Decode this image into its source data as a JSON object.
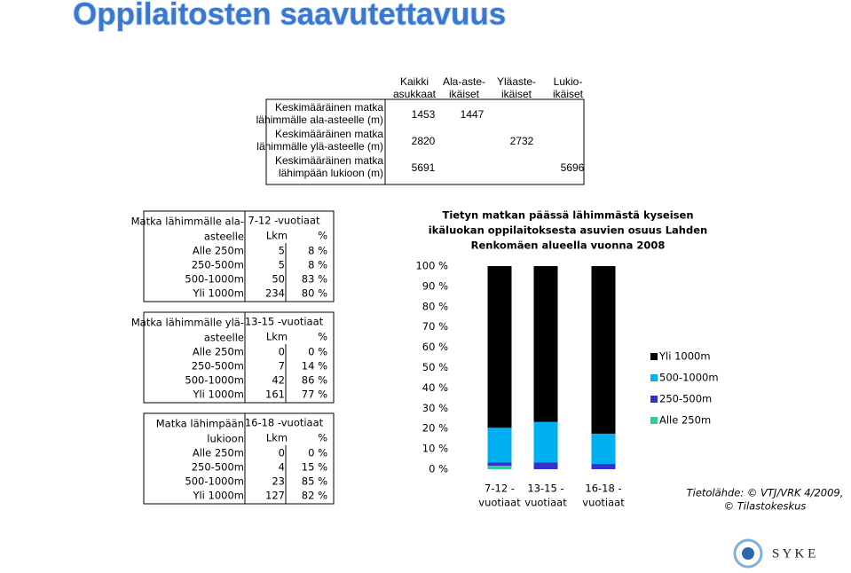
{
  "title": "Oppilaitosten saavutettavuus",
  "top_table": {
    "headers": [
      [
        "Kaikki",
        "asukkaat"
      ],
      [
        "Ala-aste-",
        "ikäiset"
      ],
      [
        "Yläaste-",
        "ikäiset"
      ],
      [
        "Lukio-",
        "ikäiset"
      ]
    ],
    "rows": [
      {
        "label": [
          "Keskimääräinen matka",
          "lähimmälle ala-asteelle (m)"
        ],
        "values": [
          1453,
          1447,
          null,
          null
        ]
      },
      {
        "label": [
          "Keskimääräinen matka",
          "lähimmälle ylä-asteelle (m)"
        ],
        "values": [
          2820,
          null,
          2732,
          null
        ]
      },
      {
        "label": [
          "Keskimääräinen matka",
          "lähimpään lukioon (m)"
        ],
        "values": [
          5691,
          null,
          null,
          5696
        ]
      }
    ]
  },
  "tables": [
    {
      "title": [
        "Matka lähimmälle ala-",
        "asteelle"
      ],
      "group": "7-12 -vuotiaat",
      "columns": [
        "Lkm",
        "%"
      ],
      "rows": [
        {
          "label": "Alle 250m",
          "count": 5,
          "pct": "8 %"
        },
        {
          "label": "250-500m",
          "count": 5,
          "pct": "8 %"
        },
        {
          "label": "500-1000m",
          "count": 50,
          "pct": "83 %"
        },
        {
          "label": "Yli 1000m",
          "count": 234,
          "pct": "80 %"
        }
      ]
    },
    {
      "title": [
        "Matka lähimmälle ylä-",
        "asteelle"
      ],
      "group": "13-15 -vuotiaat",
      "columns": [
        "Lkm",
        "%"
      ],
      "rows": [
        {
          "label": "Alle 250m",
          "count": 0,
          "pct": "0 %"
        },
        {
          "label": "250-500m",
          "count": 7,
          "pct": "14 %"
        },
        {
          "label": "500-1000m",
          "count": 42,
          "pct": "86 %"
        },
        {
          "label": "Yli 1000m",
          "count": 161,
          "pct": "77 %"
        }
      ]
    },
    {
      "title": [
        "Matka lähimpään",
        "lukioon"
      ],
      "group": "16-18 -vuotiaat",
      "columns": [
        "Lkm",
        "%"
      ],
      "rows": [
        {
          "label": "Alle 250m",
          "count": 0,
          "pct": "0 %"
        },
        {
          "label": "250-500m",
          "count": 4,
          "pct": "15 %"
        },
        {
          "label": "500-1000m",
          "count": 23,
          "pct": "85 %"
        },
        {
          "label": "Yli 1000m",
          "count": 127,
          "pct": "82 %"
        }
      ]
    }
  ],
  "chart_data": {
    "type": "stacked_bar",
    "title": [
      "Tietyn matkan päässä lähimmästä kyseisen",
      "ikäluokan oppilaitoksesta asuvien osuus Lahden",
      "Renkomäen alueella vuonna 2008"
    ],
    "categories": [
      [
        "7-12 -",
        "vuotiaat"
      ],
      [
        "13-15 -",
        "vuotiaat"
      ],
      [
        "16-18 -",
        "vuotiaat"
      ]
    ],
    "series": [
      {
        "name": "Yli 1000m",
        "color": "#000000",
        "values": [
          79.6,
          76.7,
          82.5
        ]
      },
      {
        "name": "500-1000m",
        "color": "#00b0f0",
        "values": [
          17.0,
          20.0,
          14.9
        ]
      },
      {
        "name": "250-500m",
        "color": "#3333cc",
        "values": [
          1.7,
          3.3,
          2.6
        ]
      },
      {
        "name": "Alle 250m",
        "color": "#33cc99",
        "values": [
          1.7,
          0,
          0
        ]
      }
    ],
    "ylim": [
      0,
      100
    ],
    "yticks": [
      {
        "value": 0,
        "label": "0 %"
      },
      {
        "value": 10,
        "label": "10 %"
      },
      {
        "value": 20,
        "label": "20 %"
      },
      {
        "value": 30,
        "label": "30 %"
      },
      {
        "value": 40,
        "label": "40 %"
      },
      {
        "value": 50,
        "label": "50 %"
      },
      {
        "value": 60,
        "label": "60 %"
      },
      {
        "value": 70,
        "label": "70 %"
      },
      {
        "value": 80,
        "label": "80 %"
      },
      {
        "value": 90,
        "label": "90 %"
      },
      {
        "value": 100,
        "label": "100 %"
      }
    ],
    "legend": "right",
    "grid": false
  },
  "source": [
    "Tietolähde: © VTJ/VRK 4/2009,",
    "© Tilastokeskus"
  ],
  "logo": "S Y K E"
}
